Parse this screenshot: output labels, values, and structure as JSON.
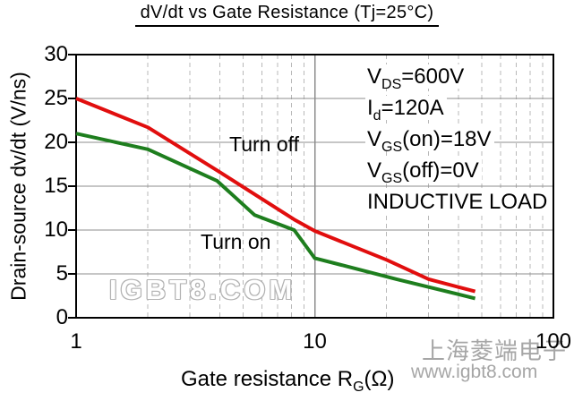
{
  "title": "dV/dt vs Gate Resistance (Tj=25°C)",
  "chart_data": {
    "type": "line",
    "title": "dV/dt vs Gate Resistance (Tj=25°C)",
    "xlabel": "Gate resistance RG(Ω)",
    "xlabel_parts": {
      "pre": "Gate resistance R",
      "sub": "G",
      "post": "(Ω)"
    },
    "ylabel": "Drain-source dv/dt (V/ns)",
    "x_scale": "log",
    "xlim": [
      1,
      100
    ],
    "ylim": [
      0,
      30
    ],
    "xticks": [
      1,
      10,
      100
    ],
    "yticks": [
      0,
      5,
      10,
      15,
      20,
      25,
      30
    ],
    "grid": "horizontal solid every 5; vertical log-decade solid; log minor dashed",
    "legend_position": "in-plot text labels",
    "series": [
      {
        "name": "Turn off",
        "color": "#e10e0e",
        "points": [
          [
            1,
            25
          ],
          [
            2,
            21.7
          ],
          [
            3.9,
            16.8
          ],
          [
            8.2,
            11.2
          ],
          [
            10,
            9.9
          ],
          [
            20,
            6.6
          ],
          [
            30,
            4.4
          ],
          [
            47,
            3.0
          ]
        ]
      },
      {
        "name": "Turn on",
        "color": "#1e7e1e",
        "points": [
          [
            1,
            21
          ],
          [
            2,
            19.2
          ],
          [
            3.9,
            15.6
          ],
          [
            5.6,
            11.7
          ],
          [
            8.2,
            10.0
          ],
          [
            10,
            6.8
          ],
          [
            22,
            4.4
          ],
          [
            47,
            2.2
          ]
        ]
      }
    ],
    "conditions": [
      {
        "pre": "V",
        "sub": "DS",
        "post": "=600V"
      },
      {
        "pre": "I",
        "sub": "d",
        "post": "=120A"
      },
      {
        "pre": "V",
        "sub": "GS",
        "post": "(on)=18V"
      },
      {
        "pre": "V",
        "sub": "GS",
        "post": "(off)=0V"
      },
      {
        "pre": "INDUCTIVE LOAD",
        "sub": "",
        "post": ""
      }
    ]
  },
  "watermarks": {
    "center": "IGBT8.COM",
    "company": "上海菱端电子",
    "site": "www.igbt8.com"
  },
  "colors": {
    "turn_off": "#e10e0e",
    "turn_on": "#1e7e1e",
    "grid_solid": "#8c8c8c",
    "grid_dashed": "#b8b8b8",
    "axis": "#000000",
    "watermark": "#a6a6a6"
  }
}
